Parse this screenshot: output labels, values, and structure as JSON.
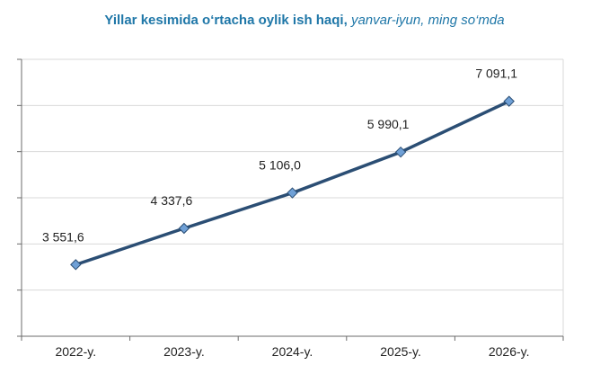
{
  "title": {
    "main": "Yillar kesimida o‘rtacha oylik ish haqi,",
    "subtitle": "yanvar-iyun, ming so‘mda"
  },
  "colors": {
    "title": "#1f77a8",
    "line": "#2b4e74",
    "marker_fill": "#6fa0d6",
    "marker_stroke": "#2b4e74",
    "grid": "#d9d9d9",
    "axis": "#6b6b6b"
  },
  "chart_data": {
    "type": "line",
    "title": "Yillar kesimida o‘rtacha oylik ish haqi, yanvar-iyun, ming so‘mda",
    "categories": [
      "2022-y.",
      "2023-y.",
      "2024-y.",
      "2025-y.",
      "2026-y."
    ],
    "series": [
      {
        "values": [
          3551.6,
          4337.6,
          5106.0,
          5990.1,
          7091.1
        ],
        "labels": [
          "3 551,6",
          "4 337,6",
          "5 106,0",
          "5 990,1",
          "7 091,1"
        ]
      }
    ],
    "ylim": [
      2000,
      8000
    ],
    "y_gridline_step": 1000,
    "y_tick_labels_shown": false,
    "grid": true,
    "legend": "none",
    "marker": "diamond"
  }
}
